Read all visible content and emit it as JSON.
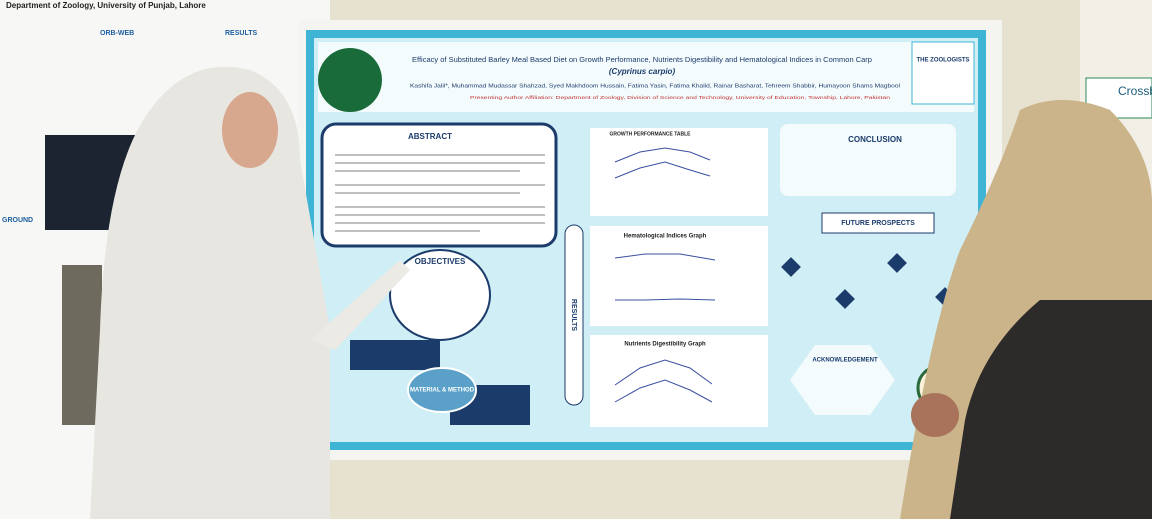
{
  "left_poster": {
    "header": "Department of Zoology, University of Punjab, Lahore",
    "headings": [
      "ORB-WEB",
      "RESULTS",
      "GROUND"
    ]
  },
  "main_poster": {
    "title": "Efficacy of Substituted Barley Meal Based Diet on Growth Performance, Nutrients Digestibility and Hematological Indices in Common Carp",
    "subtitle": "(Cyprinus carpio)",
    "authors": "Kashifa Jalil*, Muhammad Mudassar Shahzad, Syed Makhdoom Hussain, Fatima Yasin, Fatima Khalid, Rainar Basharat, Tehreem Shabbir, Humayoon Shams Magbool",
    "affiliation": "Presenting Author Affiliation: Department of Zoology, Division of Science and Technology, University of Education, Township, Lahore, Pakistan",
    "logo_right": "THE ZOOLOGISTS",
    "sections": {
      "abstract": "ABSTRACT",
      "objectives": "OBJECTIVES",
      "method": "MATERIAL & METHOD",
      "results": "RESULTS",
      "growth": "GROWTH PERFORMANCE TABLE",
      "hematological": "Hematological Indices Graph",
      "nutrients": "Nutrients Digestibility Graph",
      "conclusion": "CONCLUSION",
      "future": "FUTURE PROSPECTS",
      "acknowledgement": "ACKNOWLEDGEMENT"
    }
  },
  "right_sign": "Crossb"
}
